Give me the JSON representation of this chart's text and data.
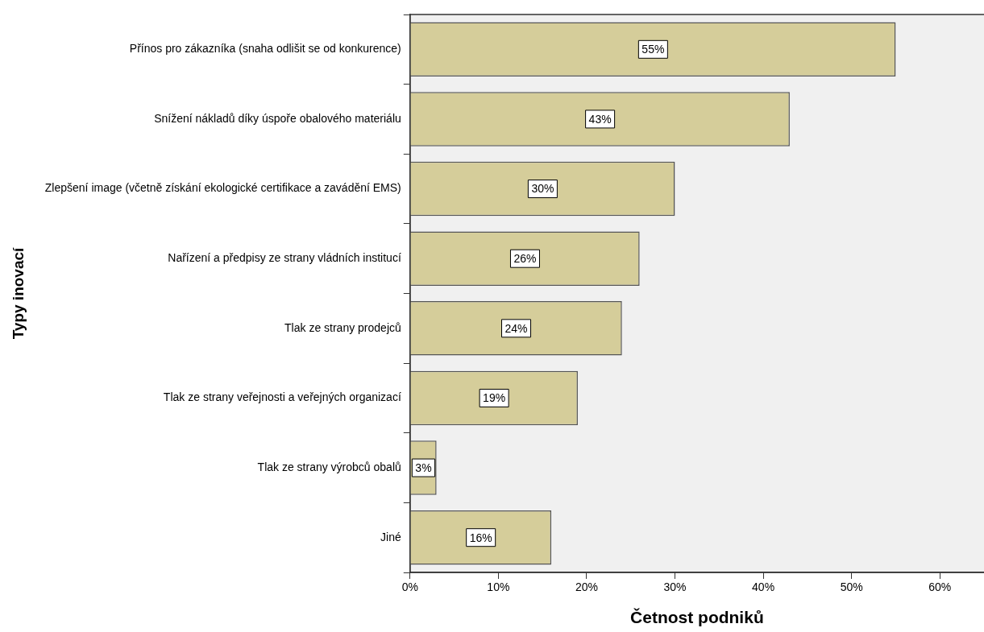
{
  "chart_data": {
    "type": "bar",
    "orientation": "horizontal",
    "xlabel": "Četnost podniků",
    "ylabel": "Typy inovací",
    "categories": [
      "Přínos pro zákazníka (snaha odlišit se od konkurence)",
      "Snížení nákladů díky úspoře obalového materiálu",
      "Zlepšení image (včetně získání ekologické certifikace a zavádění EMS)",
      "Nařízení a předpisy ze strany vládních institucí",
      "Tlak ze strany prodejců",
      "Tlak ze strany veřejnosti a veřejných organizací",
      "Tlak ze strany výrobců obalů",
      "Jiné"
    ],
    "values": [
      55,
      43,
      30,
      26,
      24,
      19,
      3,
      16
    ],
    "color": "#d5cd9a",
    "xlim": [
      0,
      65
    ],
    "xticks": [
      {
        "value": 0,
        "label": "0%"
      },
      {
        "value": 10,
        "label": "10%"
      },
      {
        "value": 20,
        "label": "20%"
      },
      {
        "value": 30,
        "label": "30%"
      },
      {
        "value": 40,
        "label": "40%"
      },
      {
        "value": 50,
        "label": "50%"
      },
      {
        "value": 60,
        "label": "60%"
      }
    ],
    "value_labels": [
      "55%",
      "43%",
      "30%",
      "26%",
      "24%",
      "19%",
      "3%",
      "16%"
    ],
    "grid": false,
    "legend": false
  }
}
